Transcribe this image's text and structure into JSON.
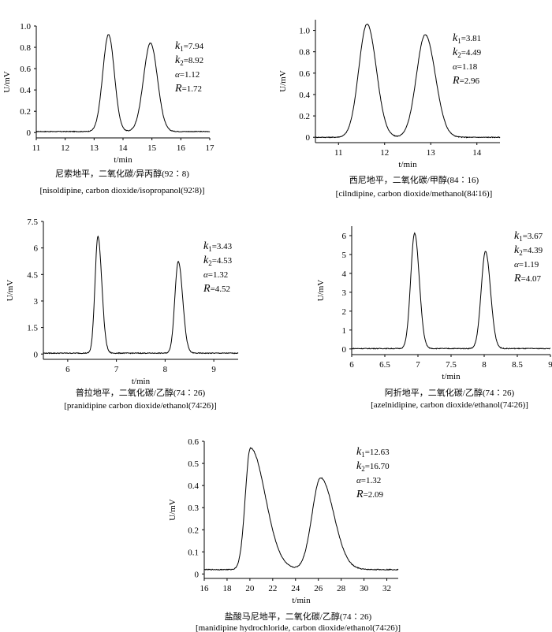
{
  "chart_data": [
    {
      "type": "line",
      "xlabel": "t/min",
      "ylabel": "U/mV",
      "xlim": [
        11,
        17
      ],
      "ylim": [
        -0.05,
        1.0
      ],
      "xticks": [
        "11",
        "12",
        "13",
        "14",
        "15",
        "16",
        "17"
      ],
      "yticks": [
        "0",
        "0.2",
        "0.4",
        "0.6",
        "0.8",
        "1.0"
      ],
      "peaks": [
        {
          "t": 13.5,
          "h": 0.91,
          "sL": 0.2,
          "sR": 0.2
        },
        {
          "t": 14.95,
          "h": 0.83,
          "sL": 0.24,
          "sR": 0.24
        }
      ],
      "baseline": 0.01,
      "annotations": [
        "k1=7.94",
        "k2=8.92",
        "α=1.12",
        "R=1.72"
      ],
      "caption_cn": "尼索地平，二氧化碳/异丙醇(92∶8)",
      "caption_en": "[nisoldipine, carbon dioxide/isopropanol(92∶8)]"
    },
    {
      "type": "line",
      "xlabel": "t/min",
      "ylabel": "U/mV",
      "xlim": [
        10.5,
        14.5
      ],
      "ylim": [
        -0.05,
        1.1
      ],
      "xticks": [
        "11",
        "12",
        "13",
        "14"
      ],
      "yticks": [
        "0",
        "0.2",
        "0.4",
        "0.6",
        "0.8",
        "1.0"
      ],
      "peaks": [
        {
          "t": 11.62,
          "h": 1.06,
          "sL": 0.18,
          "sR": 0.2
        },
        {
          "t": 12.88,
          "h": 0.96,
          "sL": 0.19,
          "sR": 0.22
        }
      ],
      "baseline": 0.0,
      "annotations": [
        "k1=3.81",
        "k2=4.49",
        "α=1.18",
        "R=2.96"
      ],
      "caption_cn": "西尼地平，二氧化碳/甲醇(84∶16)",
      "caption_en": "[cilndipine, carbon dioxide/methanol(84∶16)]"
    },
    {
      "type": "line",
      "xlabel": "t/min",
      "ylabel": "U/mV",
      "xlim": [
        5.5,
        9.5
      ],
      "ylim": [
        -0.3,
        7.5
      ],
      "xticks": [
        "6",
        "7",
        "8",
        "9"
      ],
      "yticks": [
        "0",
        "1.5",
        "3",
        "4.5",
        "6",
        "7.5"
      ],
      "peaks": [
        {
          "t": 6.62,
          "h": 6.6,
          "sL": 0.06,
          "sR": 0.08
        },
        {
          "t": 8.27,
          "h": 5.2,
          "sL": 0.07,
          "sR": 0.09
        }
      ],
      "baseline": 0.05,
      "annotations": [
        "k1=3.43",
        "k2=4.53",
        "α=1.32",
        "R=4.52"
      ],
      "caption_cn": "普拉地平，二氧化碳/乙醇(74∶26)",
      "caption_en": "[pranidipine carbon dioxide/ethanol(74∶26)]"
    },
    {
      "type": "line",
      "xlabel": "t/min",
      "ylabel": "U/mV",
      "xlim": [
        6,
        9
      ],
      "ylim": [
        -0.3,
        6.5
      ],
      "xticks": [
        "6",
        "6.5",
        "7",
        "7.5",
        "8",
        "8.5",
        "9"
      ],
      "yticks": [
        "0",
        "1",
        "2",
        "3",
        "4",
        "5",
        "6"
      ],
      "peaks": [
        {
          "t": 6.95,
          "h": 6.1,
          "sL": 0.06,
          "sR": 0.07
        },
        {
          "t": 8.02,
          "h": 5.15,
          "sL": 0.065,
          "sR": 0.075
        }
      ],
      "baseline": 0.02,
      "annotations": [
        "k1=3.67",
        "k2=4.39",
        "α=1.19",
        "R=4.07"
      ],
      "caption_cn": "阿折地平，二氧化碳/乙醇(74∶26)",
      "caption_en": "[azelnidipine, carbon dioxide/ethanol(74∶26)]"
    },
    {
      "type": "line",
      "xlabel": "t/min",
      "ylabel": "U/mV",
      "xlim": [
        16,
        33
      ],
      "ylim": [
        -0.02,
        0.6
      ],
      "xticks": [
        "16",
        "18",
        "20",
        "22",
        "24",
        "26",
        "28",
        "30",
        "32"
      ],
      "yticks": [
        "0",
        "0.1",
        "0.2",
        "0.3",
        "0.4",
        "0.5",
        "0.6"
      ],
      "peaks": [
        {
          "t": 20.05,
          "h": 0.55,
          "sL": 0.45,
          "sR": 1.3
        },
        {
          "t": 26.2,
          "h": 0.415,
          "sL": 0.75,
          "sR": 1.15
        }
      ],
      "baseline": 0.02,
      "annotations": [
        "k1=12.63",
        "k2=16.70",
        "α=1.32",
        "R=2.09"
      ],
      "caption_cn": "盐酸马尼地平，二氧化碳/乙醇(74∶26)",
      "caption_en": "[manidipine hydrochloride, carbon dioxide/ethanol(74∶26)]"
    }
  ]
}
